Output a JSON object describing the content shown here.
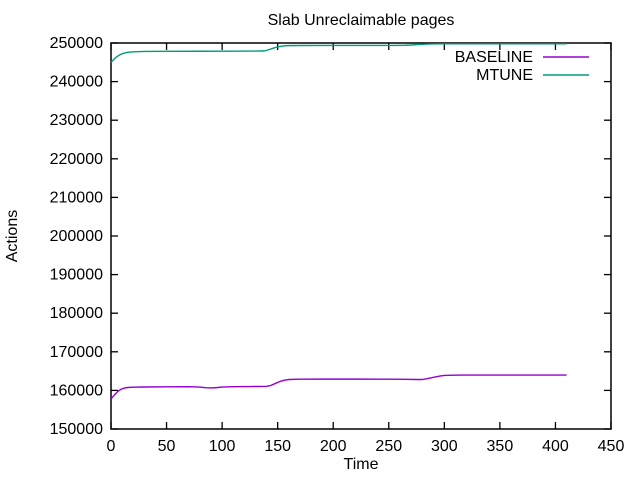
{
  "chart_data": {
    "type": "line",
    "title": "Slab Unreclaimable pages",
    "xlabel": "Time",
    "ylabel": "Actions",
    "xlim": [
      0,
      450
    ],
    "ylim": [
      150000,
      250000
    ],
    "xticks": [
      0,
      50,
      100,
      150,
      200,
      250,
      300,
      350,
      400,
      450
    ],
    "yticks": [
      150000,
      160000,
      170000,
      180000,
      190000,
      200000,
      210000,
      220000,
      230000,
      240000,
      250000
    ],
    "grid": false,
    "legend_position": "top-right-inside",
    "border_color": "#000000",
    "series": [
      {
        "name": "BASELINE",
        "color": "#9400d3",
        "points": [
          [
            0,
            157800
          ],
          [
            3,
            158800
          ],
          [
            6,
            159700
          ],
          [
            9,
            160300
          ],
          [
            12,
            160600
          ],
          [
            15,
            160750
          ],
          [
            20,
            160820
          ],
          [
            30,
            160880
          ],
          [
            50,
            160920
          ],
          [
            70,
            160950
          ],
          [
            80,
            160870
          ],
          [
            85,
            160700
          ],
          [
            90,
            160640
          ],
          [
            95,
            160720
          ],
          [
            100,
            160860
          ],
          [
            110,
            160950
          ],
          [
            125,
            161000
          ],
          [
            140,
            161050
          ],
          [
            144,
            161300
          ],
          [
            148,
            161800
          ],
          [
            152,
            162300
          ],
          [
            156,
            162650
          ],
          [
            160,
            162820
          ],
          [
            170,
            162900
          ],
          [
            190,
            162920
          ],
          [
            220,
            162920
          ],
          [
            250,
            162900
          ],
          [
            265,
            162860
          ],
          [
            275,
            162820
          ],
          [
            280,
            162820
          ],
          [
            284,
            163000
          ],
          [
            288,
            163250
          ],
          [
            292,
            163500
          ],
          [
            296,
            163720
          ],
          [
            300,
            163870
          ],
          [
            308,
            163940
          ],
          [
            320,
            163960
          ],
          [
            350,
            163960
          ],
          [
            380,
            163960
          ],
          [
            410,
            163960
          ]
        ]
      },
      {
        "name": "MTUNE",
        "color": "#009e73",
        "points": [
          [
            0,
            245000
          ],
          [
            3,
            245900
          ],
          [
            6,
            246600
          ],
          [
            9,
            247100
          ],
          [
            12,
            247400
          ],
          [
            15,
            247580
          ],
          [
            20,
            247720
          ],
          [
            30,
            247820
          ],
          [
            50,
            247850
          ],
          [
            80,
            247860
          ],
          [
            110,
            247890
          ],
          [
            130,
            247920
          ],
          [
            138,
            247960
          ],
          [
            142,
            248250
          ],
          [
            146,
            248650
          ],
          [
            150,
            249000
          ],
          [
            154,
            249220
          ],
          [
            158,
            249320
          ],
          [
            170,
            249350
          ],
          [
            200,
            249360
          ],
          [
            230,
            249360
          ],
          [
            255,
            249380
          ],
          [
            265,
            249420
          ],
          [
            270,
            249480
          ],
          [
            276,
            249600
          ],
          [
            282,
            249700
          ],
          [
            288,
            249760
          ],
          [
            300,
            249790
          ],
          [
            340,
            249800
          ],
          [
            380,
            249800
          ],
          [
            410,
            249800
          ]
        ]
      }
    ]
  }
}
